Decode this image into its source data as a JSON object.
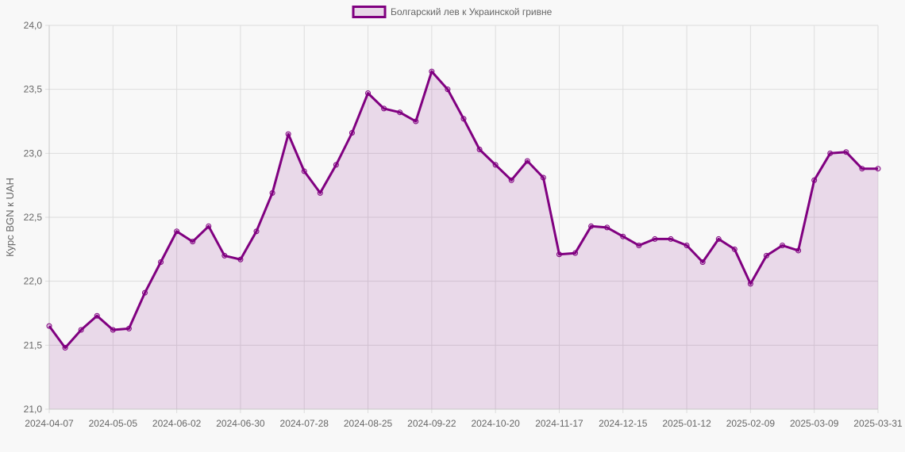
{
  "chart_data": {
    "type": "line",
    "title": "",
    "legend": [
      "Болгарский лев к Украинской гривне"
    ],
    "legend_position": "top",
    "xlabel": "",
    "ylabel": "Курс BGN к UAH",
    "ylim": [
      21.0,
      24.0
    ],
    "yticks": [
      "21,0",
      "21,5",
      "22,0",
      "22,5",
      "23,0",
      "23,5",
      "24,0"
    ],
    "xtick_labels": [
      "2024-04-07",
      "2024-05-05",
      "2024-06-02",
      "2024-06-30",
      "2024-07-28",
      "2024-08-25",
      "2024-09-22",
      "2024-10-20",
      "2024-11-17",
      "2024-12-15",
      "2025-01-12",
      "2025-02-09",
      "2025-03-09",
      "2025-03-31"
    ],
    "grid": true,
    "fill": true,
    "colors": {
      "line": "#800080",
      "fill": "#e8d8e8",
      "grid": "#dddddd"
    },
    "series": [
      {
        "name": "Болгарский лев к Украинской гривне",
        "values": [
          21.65,
          21.48,
          21.62,
          21.73,
          21.62,
          21.63,
          21.91,
          22.15,
          22.39,
          22.31,
          22.43,
          22.2,
          22.17,
          22.39,
          22.69,
          23.15,
          22.86,
          22.69,
          22.91,
          23.16,
          23.47,
          23.35,
          23.32,
          23.25,
          23.64,
          23.5,
          23.27,
          23.03,
          22.91,
          22.79,
          22.94,
          22.81,
          22.21,
          22.22,
          22.43,
          22.42,
          22.35,
          22.28,
          22.33,
          22.33,
          22.28,
          22.15,
          22.33,
          22.25,
          21.98,
          22.2,
          22.28,
          22.24,
          22.79,
          23.0,
          23.01,
          22.88,
          22.88
        ]
      }
    ],
    "point_count": 53,
    "tick_every": 4
  }
}
